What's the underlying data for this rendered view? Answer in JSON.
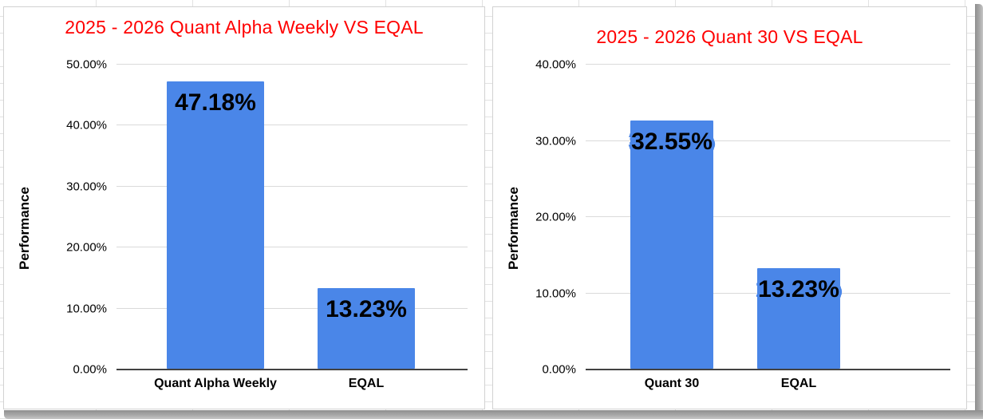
{
  "colors": {
    "bar": "#4a86e8",
    "title": "#ff0000",
    "gridline": "#dadada",
    "baseline": "#424242",
    "sheet_gridline": "#e2e2e2",
    "shadow": "#9e9e9e",
    "panel_border": "#d2d2d2",
    "background": "#ffffff",
    "text": "#000000"
  },
  "chart_data": [
    {
      "type": "bar",
      "title": "2025 - 2026 Quant Alpha Weekly VS EQAL",
      "xlabel": "",
      "ylabel": "Performance",
      "categories": [
        "Quant Alpha Weekly",
        "EQAL"
      ],
      "values": [
        47.18,
        13.23
      ],
      "value_labels": [
        "47.18%",
        "13.23%"
      ],
      "ylim": [
        0,
        50
      ],
      "yticks": [
        {
          "value": 50,
          "label": "50.00%"
        },
        {
          "value": 40,
          "label": "40.00%"
        },
        {
          "value": 30,
          "label": "30.00%"
        },
        {
          "value": 20,
          "label": "20.00%"
        },
        {
          "value": 10,
          "label": "10.00%"
        },
        {
          "value": 0,
          "label": "0.00%"
        }
      ],
      "grid": true,
      "legend_position": "none",
      "bar_color": "#4a86e8",
      "title_color": "#ff0000"
    },
    {
      "type": "bar",
      "title": "2025 - 2026 Quant 30 VS EQAL",
      "xlabel": "",
      "ylabel": "Performance",
      "categories": [
        "Quant 30",
        "EQAL"
      ],
      "values": [
        32.55,
        13.23
      ],
      "value_labels": [
        "32.55%",
        "13.23%"
      ],
      "ylim": [
        0,
        40
      ],
      "yticks": [
        {
          "value": 40,
          "label": "40.00%"
        },
        {
          "value": 30,
          "label": "30.00%"
        },
        {
          "value": 20,
          "label": "20.00%"
        },
        {
          "value": 10,
          "label": "10.00%"
        },
        {
          "value": 0,
          "label": "0.00%"
        }
      ],
      "grid": true,
      "legend_position": "none",
      "bar_color": "#4a86e8",
      "title_color": "#ff0000"
    }
  ]
}
